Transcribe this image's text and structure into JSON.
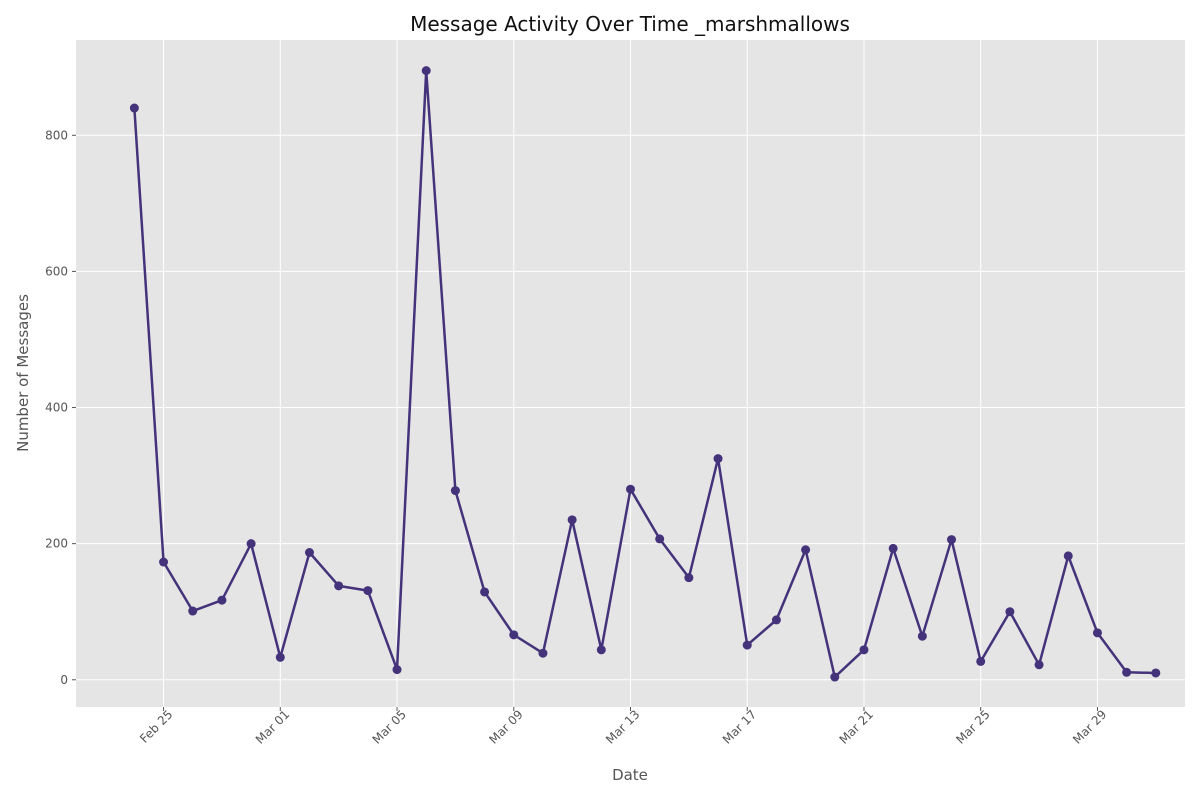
{
  "chart_data": {
    "type": "line",
    "title": "Message Activity Over Time _marshmallows",
    "xlabel": "Date",
    "ylabel": "Number of Messages",
    "grid": true,
    "colors": {
      "line": "#44337a",
      "background": "#e5e5e5",
      "grid": "#ffffff"
    },
    "x_ticks": [
      "Feb 25",
      "Mar 01",
      "Mar 05",
      "Mar 09",
      "Mar 13",
      "Mar 17",
      "Mar 21",
      "Mar 25",
      "Mar 29"
    ],
    "y_ticks": [
      0,
      200,
      400,
      600,
      800
    ],
    "x_range": [
      "2024-02-22",
      "2024-03-31"
    ],
    "ylim": [
      -40,
      940
    ],
    "x": [
      "2024-02-24",
      "2024-02-25",
      "2024-02-26",
      "2024-02-27",
      "2024-02-28",
      "2024-02-29",
      "2024-03-01",
      "2024-03-02",
      "2024-03-03",
      "2024-03-04",
      "2024-03-05",
      "2024-03-06",
      "2024-03-07",
      "2024-03-08",
      "2024-03-09",
      "2024-03-10",
      "2024-03-11",
      "2024-03-12",
      "2024-03-13",
      "2024-03-14",
      "2024-03-15",
      "2024-03-16",
      "2024-03-17",
      "2024-03-18",
      "2024-03-19",
      "2024-03-20",
      "2024-03-21",
      "2024-03-22",
      "2024-03-23",
      "2024-03-24",
      "2024-03-25",
      "2024-03-26",
      "2024-03-27",
      "2024-03-28",
      "2024-03-29",
      "2024-03-30"
    ],
    "values": [
      840,
      173,
      101,
      117,
      200,
      33,
      187,
      138,
      131,
      15,
      895,
      278,
      129,
      66,
      39,
      235,
      44,
      280,
      207,
      150,
      325,
      51,
      88,
      191,
      4,
      44,
      193,
      64,
      206,
      27,
      100,
      22,
      182,
      69,
      11,
      10
    ]
  }
}
